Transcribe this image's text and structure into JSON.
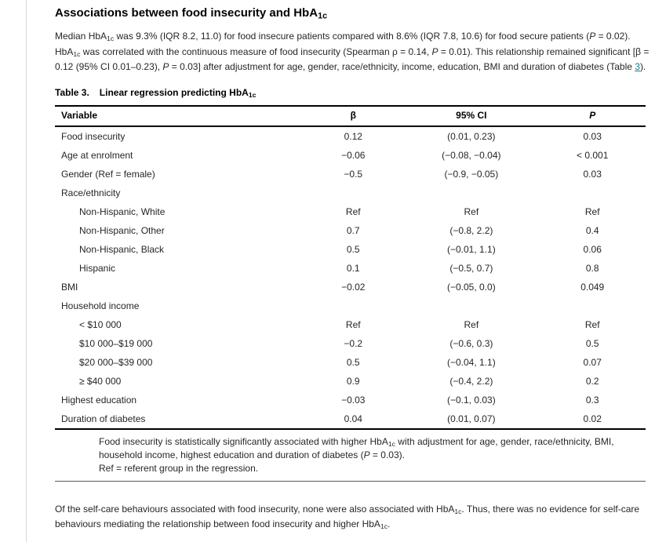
{
  "colors": {
    "link": "#1b7688",
    "text": "#262626",
    "heading": "#000000",
    "table_border": "#000000",
    "left_rule": "#d8d8d8",
    "background": "#ffffff"
  },
  "heading": {
    "segments": [
      {
        "t": "Associations between food insecurity and HbA"
      },
      {
        "t": "1c",
        "s": "sub"
      }
    ]
  },
  "intro": {
    "segments": [
      {
        "t": "Median HbA"
      },
      {
        "t": "1c",
        "s": "sub"
      },
      {
        "t": " was 9.3% (IQR 8.2, 11.0) for food insecure patients compared with 8.6% (IQR 7.8, 10.6) for food secure patients ("
      },
      {
        "t": "P",
        "s": "i"
      },
      {
        "t": " = 0.02). HbA"
      },
      {
        "t": "1c",
        "s": "sub"
      },
      {
        "t": " was correlated with the continuous measure of food insecurity (Spearman ρ = 0.14, "
      },
      {
        "t": "P",
        "s": "i"
      },
      {
        "t": " = 0.01). This relationship remained significant [β = 0.12 (95% CI 0.01–0.23), "
      },
      {
        "t": "P",
        "s": "i"
      },
      {
        "t": " = 0.03] after adjustment for age, gender, race/ethnicity, income, education, BMI and duration of diabetes (Table "
      },
      {
        "t": "3",
        "s": "link"
      },
      {
        "t": ")."
      }
    ]
  },
  "table": {
    "caption": {
      "segments": [
        {
          "t": "Table 3."
        },
        {
          "t": "Linear regression predicting HbA",
          "s": "gap"
        },
        {
          "t": "1c",
          "s": "sub"
        }
      ]
    },
    "columns": [
      "Variable",
      "β",
      "95% CI",
      "P"
    ],
    "rows": [
      {
        "label": "Food insecurity",
        "indent": false,
        "beta": "0.12",
        "ci": "(0.01, 0.23)",
        "p": "0.03"
      },
      {
        "label": "Age at enrolment",
        "indent": false,
        "beta": "−0.06",
        "ci": "(−0.08, −0.04)",
        "p": "< 0.001"
      },
      {
        "label": "Gender (Ref = female)",
        "indent": false,
        "beta": "−0.5",
        "ci": "(−0.9, −0.05)",
        "p": "0.03"
      },
      {
        "label": "Race/ethnicity",
        "indent": false,
        "beta": "",
        "ci": "",
        "p": ""
      },
      {
        "label": "Non-Hispanic, White",
        "indent": true,
        "beta": "Ref",
        "ci": "Ref",
        "p": "Ref"
      },
      {
        "label": "Non-Hispanic, Other",
        "indent": true,
        "beta": "0.7",
        "ci": "(−0.8, 2.2)",
        "p": "0.4"
      },
      {
        "label": "Non-Hispanic, Black",
        "indent": true,
        "beta": "0.5",
        "ci": "(−0.01, 1.1)",
        "p": "0.06"
      },
      {
        "label": "Hispanic",
        "indent": true,
        "beta": "0.1",
        "ci": "(−0.5, 0.7)",
        "p": "0.8"
      },
      {
        "label": "BMI",
        "indent": false,
        "beta": "−0.02",
        "ci": "(−0.05, 0.0)",
        "p": "0.049"
      },
      {
        "label": "Household income",
        "indent": false,
        "beta": "",
        "ci": "",
        "p": ""
      },
      {
        "label": "< $10 000",
        "indent": true,
        "beta": "Ref",
        "ci": "Ref",
        "p": "Ref"
      },
      {
        "label": "$10 000–$19 000",
        "indent": true,
        "beta": "−0.2",
        "ci": "(−0.6, 0.3)",
        "p": "0.5"
      },
      {
        "label": "$20 000–$39 000",
        "indent": true,
        "beta": "0.5",
        "ci": "(−0.04, 1.1)",
        "p": "0.07"
      },
      {
        "label": "≥ $40 000",
        "indent": true,
        "beta": "0.9",
        "ci": "(−0.4, 2.2)",
        "p": "0.2"
      },
      {
        "label": "Highest education",
        "indent": false,
        "beta": "−0.03",
        "ci": "(−0.1, 0.03)",
        "p": "0.3"
      },
      {
        "label": "Duration of diabetes",
        "indent": false,
        "beta": "0.04",
        "ci": "(0.01, 0.07)",
        "p": "0.02"
      }
    ],
    "footnote": {
      "segments": [
        {
          "t": "Food insecurity is statistically significantly associated with higher HbA"
        },
        {
          "t": "1c",
          "s": "sub"
        },
        {
          "t": " with adjustment for age, gender, race/ethnicity, BMI, household income, highest education and duration of diabetes ("
        },
        {
          "t": "P",
          "s": "i"
        },
        {
          "t": " = 0.03)."
        }
      ],
      "ref_line": "Ref = referent group in the regression."
    }
  },
  "outro": {
    "segments": [
      {
        "t": "Of the self-care behaviours associated with food insecurity, none were also associated with HbA"
      },
      {
        "t": "1c",
        "s": "sub"
      },
      {
        "t": ". Thus, there was no evidence for self-care behaviours mediating the relationship between food insecurity and higher HbA"
      },
      {
        "t": "1c",
        "s": "sub"
      },
      {
        "t": "."
      }
    ]
  }
}
